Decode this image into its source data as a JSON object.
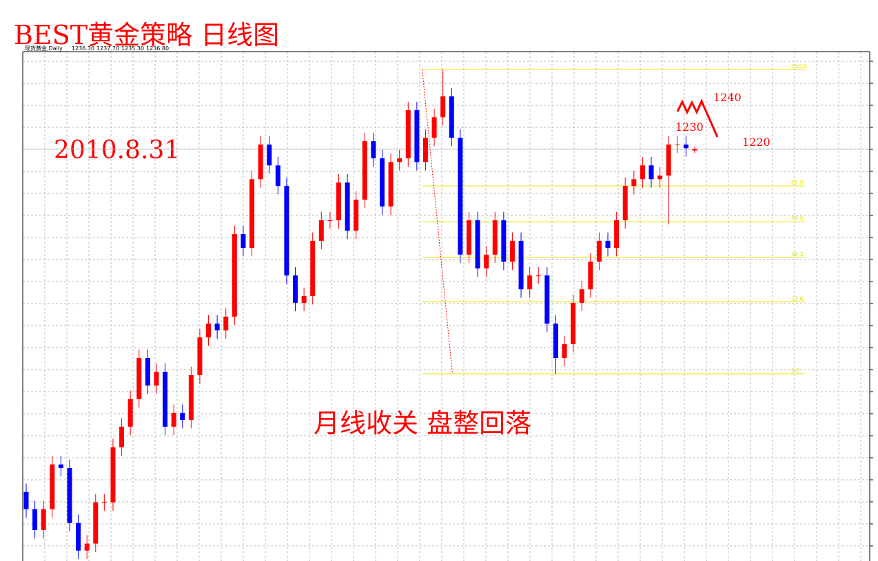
{
  "header": {
    "title": "BEST黄金策略  日线图",
    "date": "2010.8.31",
    "subtitle": "月线收关  盘整回落",
    "symbol": "现货黄金,Daily",
    "ohlc": [
      "1236.30",
      "1237.70",
      "1235.30",
      "1236.80"
    ]
  },
  "annotations": [
    "1240",
    "1230",
    "1220"
  ],
  "chart_data": {
    "type": "candlestick",
    "ylim": [
      1090.5,
      1271.4
    ],
    "up_color": "#ff0000",
    "down_color": "#0000ff",
    "open": [
      1115.0,
      1108.9,
      1101.5,
      1108.9,
      1124.8,
      1123.5,
      1104.0,
      1094.2,
      1096.7,
      1111.3,
      1111.3,
      1130.9,
      1138.2,
      1148.0,
      1162.6,
      1152.8,
      1157.7,
      1138.2,
      1143.1,
      1140.6,
      1156.5,
      1169.9,
      1174.8,
      1172.4,
      1177.3,
      1206.6,
      1201.7,
      1226.1,
      1238.4,
      1231.0,
      1223.7,
      1191.9,
      1182.2,
      1184.6,
      1204.2,
      1211.5,
      1211.5,
      1224.9,
      1207.8,
      1218.8,
      1239.6,
      1233.5,
      1216.4,
      1232.2,
      1233.5,
      1250.6,
      1232.2,
      1240.8,
      1248.1,
      1255.5,
      1240.8,
      1199.3,
      1211.5,
      1194.4,
      1199.3,
      1211.5,
      1196.8,
      1204.2,
      1187.0,
      1191.9,
      1191.9,
      1174.8,
      1162.6,
      1167.5,
      1182.2,
      1187.0,
      1196.8,
      1204.2,
      1201.7,
      1211.5,
      1223.7,
      1226.1,
      1231.0,
      1226.1,
      1227.4,
      1238.4,
      1238.4,
      1236.3
    ],
    "high": [
      1118.0,
      1111.9,
      1111.9,
      1127.8,
      1127.8,
      1126.5,
      1107.0,
      1099.7,
      1114.3,
      1114.3,
      1133.9,
      1141.2,
      1151.0,
      1165.6,
      1165.6,
      1160.7,
      1160.7,
      1146.1,
      1146.1,
      1159.5,
      1172.9,
      1177.8,
      1177.8,
      1180.3,
      1209.6,
      1209.6,
      1229.1,
      1241.4,
      1241.4,
      1234.0,
      1226.7,
      1194.9,
      1187.6,
      1207.2,
      1214.5,
      1214.5,
      1227.9,
      1227.9,
      1221.8,
      1242.6,
      1242.6,
      1236.5,
      1235.2,
      1236.5,
      1253.6,
      1253.6,
      1243.8,
      1251.1,
      1265.0,
      1258.5,
      1243.8,
      1214.5,
      1214.5,
      1202.3,
      1214.5,
      1214.5,
      1207.2,
      1207.2,
      1194.9,
      1194.9,
      1194.9,
      1177.8,
      1170.5,
      1185.2,
      1190.0,
      1199.8,
      1207.2,
      1207.2,
      1214.5,
      1226.7,
      1229.1,
      1234.0,
      1234.0,
      1230.4,
      1241.4,
      1241.4,
      1241.4,
      1237.7
    ],
    "low": [
      1105.9,
      1098.5,
      1098.5,
      1105.9,
      1120.5,
      1101.0,
      1091.2,
      1091.2,
      1093.7,
      1108.3,
      1108.3,
      1127.9,
      1135.2,
      1145.0,
      1149.8,
      1149.8,
      1135.2,
      1135.2,
      1137.6,
      1137.6,
      1153.5,
      1166.9,
      1169.4,
      1169.4,
      1174.3,
      1198.7,
      1198.7,
      1223.1,
      1228.0,
      1220.7,
      1188.9,
      1179.2,
      1179.2,
      1181.6,
      1201.2,
      1208.5,
      1208.5,
      1204.8,
      1204.8,
      1215.8,
      1230.5,
      1213.4,
      1213.4,
      1229.2,
      1230.5,
      1229.2,
      1229.2,
      1237.8,
      1245.1,
      1237.8,
      1196.3,
      1196.3,
      1191.4,
      1191.4,
      1196.3,
      1193.8,
      1193.8,
      1184.0,
      1184.0,
      1188.9,
      1171.8,
      1157.0,
      1159.6,
      1164.5,
      1179.2,
      1184.0,
      1193.8,
      1198.7,
      1198.7,
      1208.5,
      1220.7,
      1223.1,
      1223.1,
      1223.1,
      1210.0,
      1235.4,
      1234.1,
      1235.3
    ],
    "close": [
      1108.9,
      1101.5,
      1108.9,
      1124.8,
      1123.5,
      1104.0,
      1094.2,
      1096.7,
      1111.3,
      1111.3,
      1130.9,
      1138.2,
      1148.0,
      1162.6,
      1152.8,
      1157.7,
      1138.2,
      1143.1,
      1140.6,
      1156.5,
      1169.9,
      1174.8,
      1172.4,
      1177.3,
      1206.6,
      1201.7,
      1226.1,
      1238.4,
      1231.0,
      1223.7,
      1191.9,
      1182.2,
      1184.6,
      1204.2,
      1211.5,
      1211.5,
      1224.9,
      1207.8,
      1218.8,
      1239.6,
      1233.5,
      1216.4,
      1232.2,
      1233.5,
      1250.6,
      1232.2,
      1240.8,
      1248.1,
      1255.5,
      1240.8,
      1199.3,
      1211.5,
      1194.4,
      1199.3,
      1211.5,
      1196.8,
      1204.2,
      1187.0,
      1191.9,
      1191.9,
      1174.8,
      1162.6,
      1167.5,
      1182.2,
      1187.0,
      1196.8,
      1204.2,
      1201.7,
      1211.5,
      1223.7,
      1226.1,
      1231.0,
      1226.1,
      1227.4,
      1238.4,
      1238.4,
      1237.1,
      1236.8
    ],
    "fibonacci": [
      {
        "label": "100.0",
        "price": 1265
      },
      {
        "label": "61.8",
        "price": 1223.7
      },
      {
        "label": "50.0",
        "price": 1211
      },
      {
        "label": "38.2",
        "price": 1198.3
      },
      {
        "label": "23.6",
        "price": 1182.5
      },
      {
        "label": "0.0",
        "price": 1157
      }
    ],
    "fib_color": "#e6e600"
  }
}
